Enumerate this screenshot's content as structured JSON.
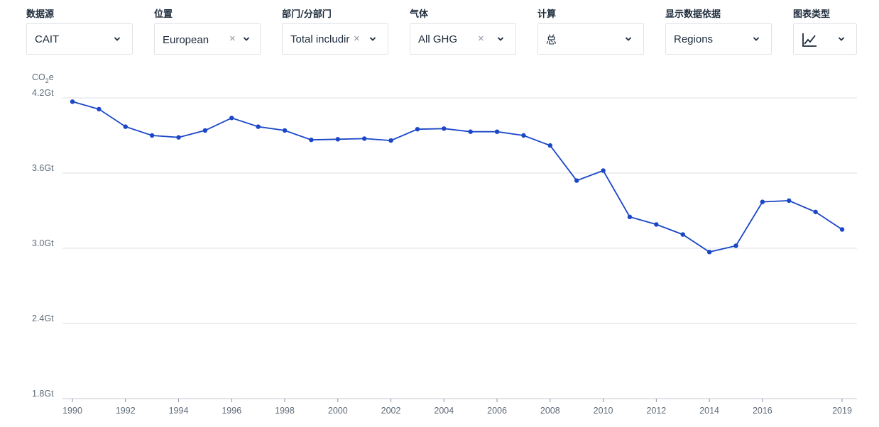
{
  "filters": [
    {
      "label": "数据源",
      "value": "CAIT",
      "clearable": false
    },
    {
      "label": "位置",
      "value": "European",
      "clearable": true
    },
    {
      "label": "部门/分部门",
      "value": "Total includir",
      "clearable": true
    },
    {
      "label": "气体",
      "value": "All GHG",
      "clearable": true
    },
    {
      "label": "计算",
      "value": "总",
      "clearable": false
    },
    {
      "label": "显示数据依据",
      "value": "Regions",
      "clearable": false
    },
    {
      "label": "图表类型",
      "value": "",
      "icon": "line-chart-icon",
      "clearable": false
    }
  ],
  "icons": {
    "clear": "×"
  },
  "chart_data": {
    "type": "line",
    "unit_label": {
      "base": "CO",
      "sub": "2",
      "suffix": "e"
    },
    "y_tick_labels": [
      "4.2Gt",
      "3.6Gt",
      "3.0Gt",
      "2.4Gt",
      "1.8Gt"
    ],
    "y_ticks": [
      4.2,
      3.6,
      3.0,
      2.4,
      1.8
    ],
    "ylim": [
      1.8,
      4.2
    ],
    "x_tick_labels": [
      "1990",
      "1992",
      "1994",
      "1996",
      "1998",
      "2000",
      "2002",
      "2004",
      "2006",
      "2008",
      "2010",
      "2012",
      "2014",
      "2016",
      "2019"
    ],
    "x_ticks": [
      1990,
      1992,
      1994,
      1996,
      1998,
      2000,
      2002,
      2004,
      2006,
      2008,
      2010,
      2012,
      2014,
      2016,
      2019
    ],
    "xlim": [
      1990,
      2019
    ],
    "grid": true,
    "legend": "none",
    "series": [
      {
        "color": "#1a46c8",
        "points": [
          {
            "x": 1990,
            "y": 4.17
          },
          {
            "x": 1991,
            "y": 4.11
          },
          {
            "x": 1992,
            "y": 3.97
          },
          {
            "x": 1993,
            "y": 3.9
          },
          {
            "x": 1994,
            "y": 3.885
          },
          {
            "x": 1995,
            "y": 3.94
          },
          {
            "x": 1996,
            "y": 4.04
          },
          {
            "x": 1997,
            "y": 3.97
          },
          {
            "x": 1998,
            "y": 3.94
          },
          {
            "x": 1999,
            "y": 3.865
          },
          {
            "x": 2000,
            "y": 3.87
          },
          {
            "x": 2001,
            "y": 3.875
          },
          {
            "x": 2002,
            "y": 3.86
          },
          {
            "x": 2003,
            "y": 3.95
          },
          {
            "x": 2004,
            "y": 3.955
          },
          {
            "x": 2005,
            "y": 3.93
          },
          {
            "x": 2006,
            "y": 3.93
          },
          {
            "x": 2007,
            "y": 3.9
          },
          {
            "x": 2008,
            "y": 3.82
          },
          {
            "x": 2009,
            "y": 3.54
          },
          {
            "x": 2010,
            "y": 3.62
          },
          {
            "x": 2011,
            "y": 3.25
          },
          {
            "x": 2012,
            "y": 3.19
          },
          {
            "x": 2013,
            "y": 3.11
          },
          {
            "x": 2014,
            "y": 2.97
          },
          {
            "x": 2015,
            "y": 3.02
          },
          {
            "x": 2016,
            "y": 3.37
          },
          {
            "x": 2017,
            "y": 3.38
          },
          {
            "x": 2018,
            "y": 3.29
          },
          {
            "x": 2019,
            "y": 3.15
          }
        ]
      }
    ]
  }
}
